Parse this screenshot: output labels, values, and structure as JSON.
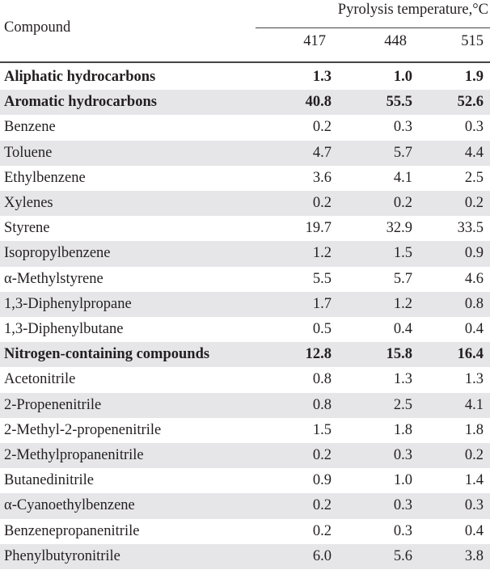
{
  "header": {
    "compound_label": "Compound",
    "group_label": "Pyrolysis temperature,°C",
    "columns": [
      "417",
      "448",
      "515"
    ]
  },
  "rows": [
    {
      "name": "Aliphatic hydrocarbons",
      "bold": true,
      "values": [
        "1.3",
        "1.0",
        "1.9"
      ]
    },
    {
      "name": "Aromatic hydrocarbons",
      "bold": true,
      "values": [
        "40.8",
        "55.5",
        "52.6"
      ]
    },
    {
      "name": "Benzene",
      "bold": false,
      "values": [
        "0.2",
        "0.3",
        "0.3"
      ]
    },
    {
      "name": "Toluene",
      "bold": false,
      "values": [
        "4.7",
        "5.7",
        "4.4"
      ]
    },
    {
      "name": "Ethylbenzene",
      "bold": false,
      "values": [
        "3.6",
        "4.1",
        "2.5"
      ]
    },
    {
      "name": "Xylenes",
      "bold": false,
      "values": [
        "0.2",
        "0.2",
        "0.2"
      ]
    },
    {
      "name": "Styrene",
      "bold": false,
      "values": [
        "19.7",
        "32.9",
        "33.5"
      ]
    },
    {
      "name": "Isopropylbenzene",
      "bold": false,
      "values": [
        "1.2",
        "1.5",
        "0.9"
      ]
    },
    {
      "name": "α-Methylstyrene",
      "bold": false,
      "values": [
        "5.5",
        "5.7",
        "4.6"
      ]
    },
    {
      "name": "1,3-Diphenylpropane",
      "bold": false,
      "values": [
        "1.7",
        "1.2",
        "0.8"
      ]
    },
    {
      "name": "1,3-Diphenylbutane",
      "bold": false,
      "values": [
        "0.5",
        "0.4",
        "0.4"
      ]
    },
    {
      "name": "Nitrogen-containing compounds",
      "bold": true,
      "values": [
        "12.8",
        "15.8",
        "16.4"
      ]
    },
    {
      "name": "Acetonitrile",
      "bold": false,
      "values": [
        "0.8",
        "1.3",
        "1.3"
      ]
    },
    {
      "name": "2-Propenenitrile",
      "bold": false,
      "values": [
        "0.8",
        "2.5",
        "4.1"
      ]
    },
    {
      "name": "2-Methyl-2-propenenitrile",
      "bold": false,
      "values": [
        "1.5",
        "1.8",
        "1.8"
      ]
    },
    {
      "name": "2-Methylpropanenitrile",
      "bold": false,
      "values": [
        "0.2",
        "0.3",
        "0.2"
      ]
    },
    {
      "name": "Butanedinitrile",
      "bold": false,
      "values": [
        "0.9",
        "1.0",
        "1.4"
      ]
    },
    {
      "name": "α-Cyanoethylbenzene",
      "bold": false,
      "values": [
        "0.2",
        "0.3",
        "0.3"
      ]
    },
    {
      "name": "Benzenepropanenitrile",
      "bold": false,
      "values": [
        "0.2",
        "0.3",
        "0.4"
      ]
    },
    {
      "name": "Phenylbutyronitrile",
      "bold": false,
      "values": [
        "6.0",
        "5.6",
        "3.8"
      ]
    }
  ],
  "colors": {
    "shade": "#e6e6e8",
    "text": "#231f20"
  }
}
